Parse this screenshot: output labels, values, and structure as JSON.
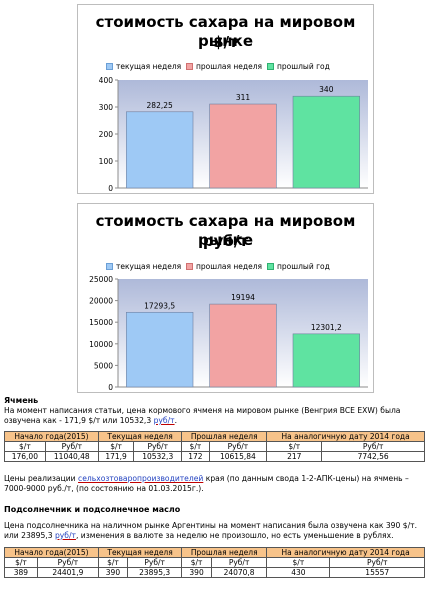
{
  "charts": [
    {
      "title_line1": "стоимость сахара на мировом рынке",
      "title_line2": "$/т",
      "legend": [
        "текущая неделя",
        "прошлая неделя",
        "прошлый год"
      ]
    },
    {
      "title_line1": "стоимость сахара на мировом рынке",
      "title_line2": "руб/т",
      "legend": [
        "текущая неделя",
        "прошлая неделя",
        "прошлый год"
      ]
    }
  ],
  "chart_data": [
    {
      "type": "bar",
      "title": "стоимость сахара на мировом рынке $/т",
      "categories": [
        "текущая неделя",
        "прошлая неделя",
        "прошлый год"
      ],
      "values": [
        282.25,
        311,
        340
      ],
      "value_labels": [
        "282,25",
        "311",
        "340"
      ],
      "ylim": [
        0,
        400
      ],
      "yticks": [
        0,
        100,
        200,
        300,
        400
      ],
      "colors": [
        "#9ec9f5",
        "#f2a3a3",
        "#5fe3a1"
      ],
      "grid": false,
      "legend_position": "top"
    },
    {
      "type": "bar",
      "title": "стоимость сахара на мировом рынке руб/т",
      "categories": [
        "текущая неделя",
        "прошлая неделя",
        "прошлый год"
      ],
      "values": [
        17293.5,
        19194,
        12301.2
      ],
      "value_labels": [
        "17293,5",
        "19194",
        "12301,2"
      ],
      "ylim": [
        0,
        25000
      ],
      "yticks": [
        0,
        5000,
        10000,
        15000,
        20000,
        25000
      ],
      "colors": [
        "#9ec9f5",
        "#f2a3a3",
        "#5fe3a1"
      ],
      "grid": false,
      "legend_position": "top"
    }
  ],
  "barley": {
    "heading": "Ячмень",
    "para_part1": "На момент написания статьи, цена кормового ячменя на мировом рынке (Венгрия BCE EXW) была озвучена как - 171,9 $/т или 10532,3 ",
    "para_link": "руб/т",
    "para_part2": ".",
    "table": {
      "head": [
        "Начало года(2015)",
        "Текущая неделя",
        "Прошлая неделя",
        "На аналогичную дату 2014 года"
      ],
      "sub": [
        "$/т",
        "Руб/т",
        "$/т",
        "Руб/т",
        "$/т",
        "Руб/т",
        "$/т",
        "Руб/т"
      ],
      "values": [
        "176,00",
        "11040,48",
        "171,9",
        "10532,3",
        "172",
        "10615,84",
        "217",
        "7742,56"
      ]
    },
    "note_part1": "Цены реализации ",
    "note_link": "сельхозтоваропроизводителей",
    "note_part2": " края (по данным свода 1-2-АПК-цены) на ячмень – 7000-9000 руб./т, (по состоянию на 01.03.2015г.)."
  },
  "sunflower": {
    "heading": "Подсолнечник и подсолнечное масло",
    "para_part1": "Цена подсолнечника на наличном рынке Аргентины на момент написания была озвучена как 390 $/т. или 23895,3 ",
    "para_link": "руб/т",
    "para_part2": ",  изменения в валюте за неделю не произошло, но есть уменьшение в рублях.",
    "table": {
      "head": [
        "Начало года(2015)",
        "Текущая неделя",
        "Прошлая неделя",
        "На аналогичную дату 2014 года"
      ],
      "sub": [
        "$/т",
        "Руб/т",
        "$/т",
        "Руб/т",
        "$/т",
        "Руб/т",
        "$/т",
        "Руб/т"
      ],
      "values": [
        "389",
        "24401,9",
        "390",
        "23895,3",
        "390",
        "24070,8",
        "430",
        "15557"
      ]
    }
  }
}
